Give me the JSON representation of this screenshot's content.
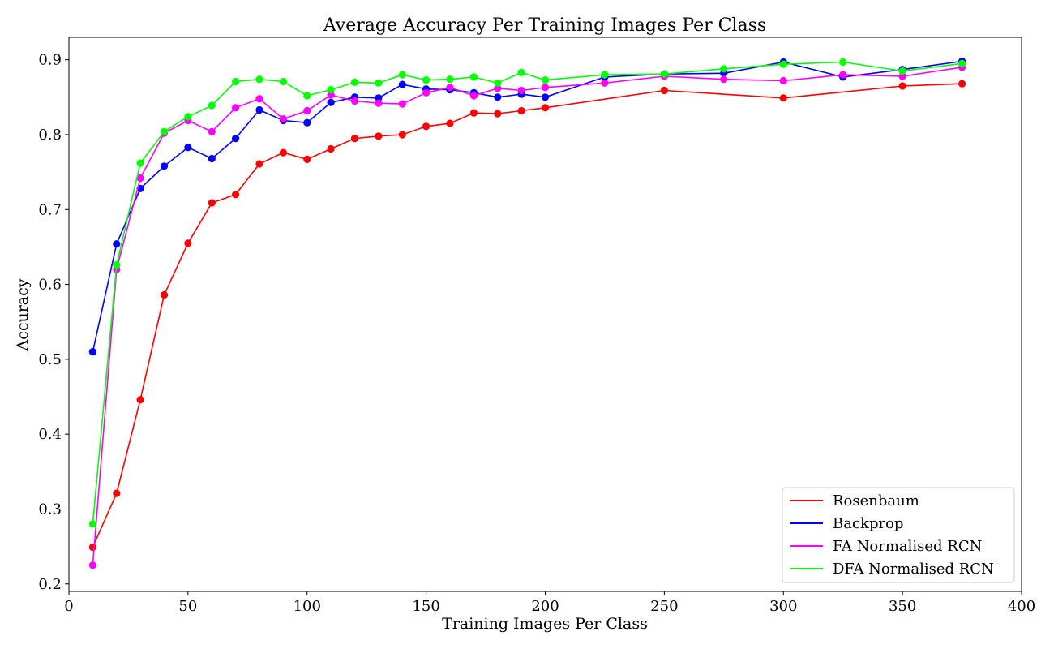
{
  "chart_data": {
    "type": "line",
    "title": "Average Accuracy Per Training Images Per Class",
    "xlabel": "Training Images Per Class",
    "ylabel": "Accuracy",
    "xlim": [
      0,
      400
    ],
    "ylim": [
      0.19,
      0.93
    ],
    "xticks": [
      0,
      50,
      100,
      150,
      200,
      250,
      300,
      350,
      400
    ],
    "yticks": [
      0.2,
      0.3,
      0.4,
      0.5,
      0.6,
      0.7,
      0.8,
      0.9
    ],
    "x": [
      10,
      20,
      30,
      40,
      50,
      60,
      70,
      80,
      90,
      100,
      110,
      120,
      130,
      140,
      150,
      160,
      170,
      180,
      190,
      200,
      225,
      250,
      275,
      300,
      325,
      350,
      375
    ],
    "grid": false,
    "legend_position": "bottom-right",
    "series": [
      {
        "name": "Rosenbaum",
        "color": "#ff0000",
        "values": [
          0.249,
          0.321,
          0.446,
          0.586,
          0.655,
          0.709,
          0.72,
          0.761,
          0.776,
          0.767,
          0.781,
          0.795,
          0.798,
          0.8,
          0.811,
          0.815,
          0.829,
          0.828,
          0.832,
          0.836,
          null,
          0.859,
          null,
          0.849,
          null,
          0.865,
          0.868
        ]
      },
      {
        "name": "Backprop",
        "color": "#0000ff",
        "values": [
          0.51,
          0.654,
          0.728,
          0.758,
          0.783,
          0.768,
          0.795,
          0.833,
          0.819,
          0.816,
          0.843,
          0.85,
          0.849,
          0.867,
          0.861,
          0.86,
          0.856,
          0.85,
          0.854,
          0.85,
          0.877,
          0.881,
          0.882,
          0.897,
          0.877,
          0.887,
          0.898
        ]
      },
      {
        "name": "FA Normalised RCN",
        "color": "#ff00ff",
        "values": [
          0.225,
          0.62,
          0.742,
          0.802,
          0.819,
          0.804,
          0.836,
          0.848,
          0.821,
          0.832,
          0.853,
          0.845,
          0.842,
          0.841,
          0.856,
          0.863,
          0.852,
          0.862,
          0.859,
          0.863,
          0.869,
          0.878,
          0.874,
          0.872,
          0.88,
          0.878,
          0.89
        ]
      },
      {
        "name": "DFA Normalised RCN",
        "color": "#00ff00",
        "values": [
          0.28,
          0.626,
          0.762,
          0.804,
          0.824,
          0.839,
          0.871,
          0.874,
          0.871,
          0.852,
          0.86,
          0.87,
          0.869,
          0.88,
          0.873,
          0.874,
          0.877,
          0.869,
          0.883,
          0.873,
          0.88,
          0.881,
          0.888,
          0.894,
          0.897,
          0.885,
          0.895
        ]
      }
    ]
  }
}
